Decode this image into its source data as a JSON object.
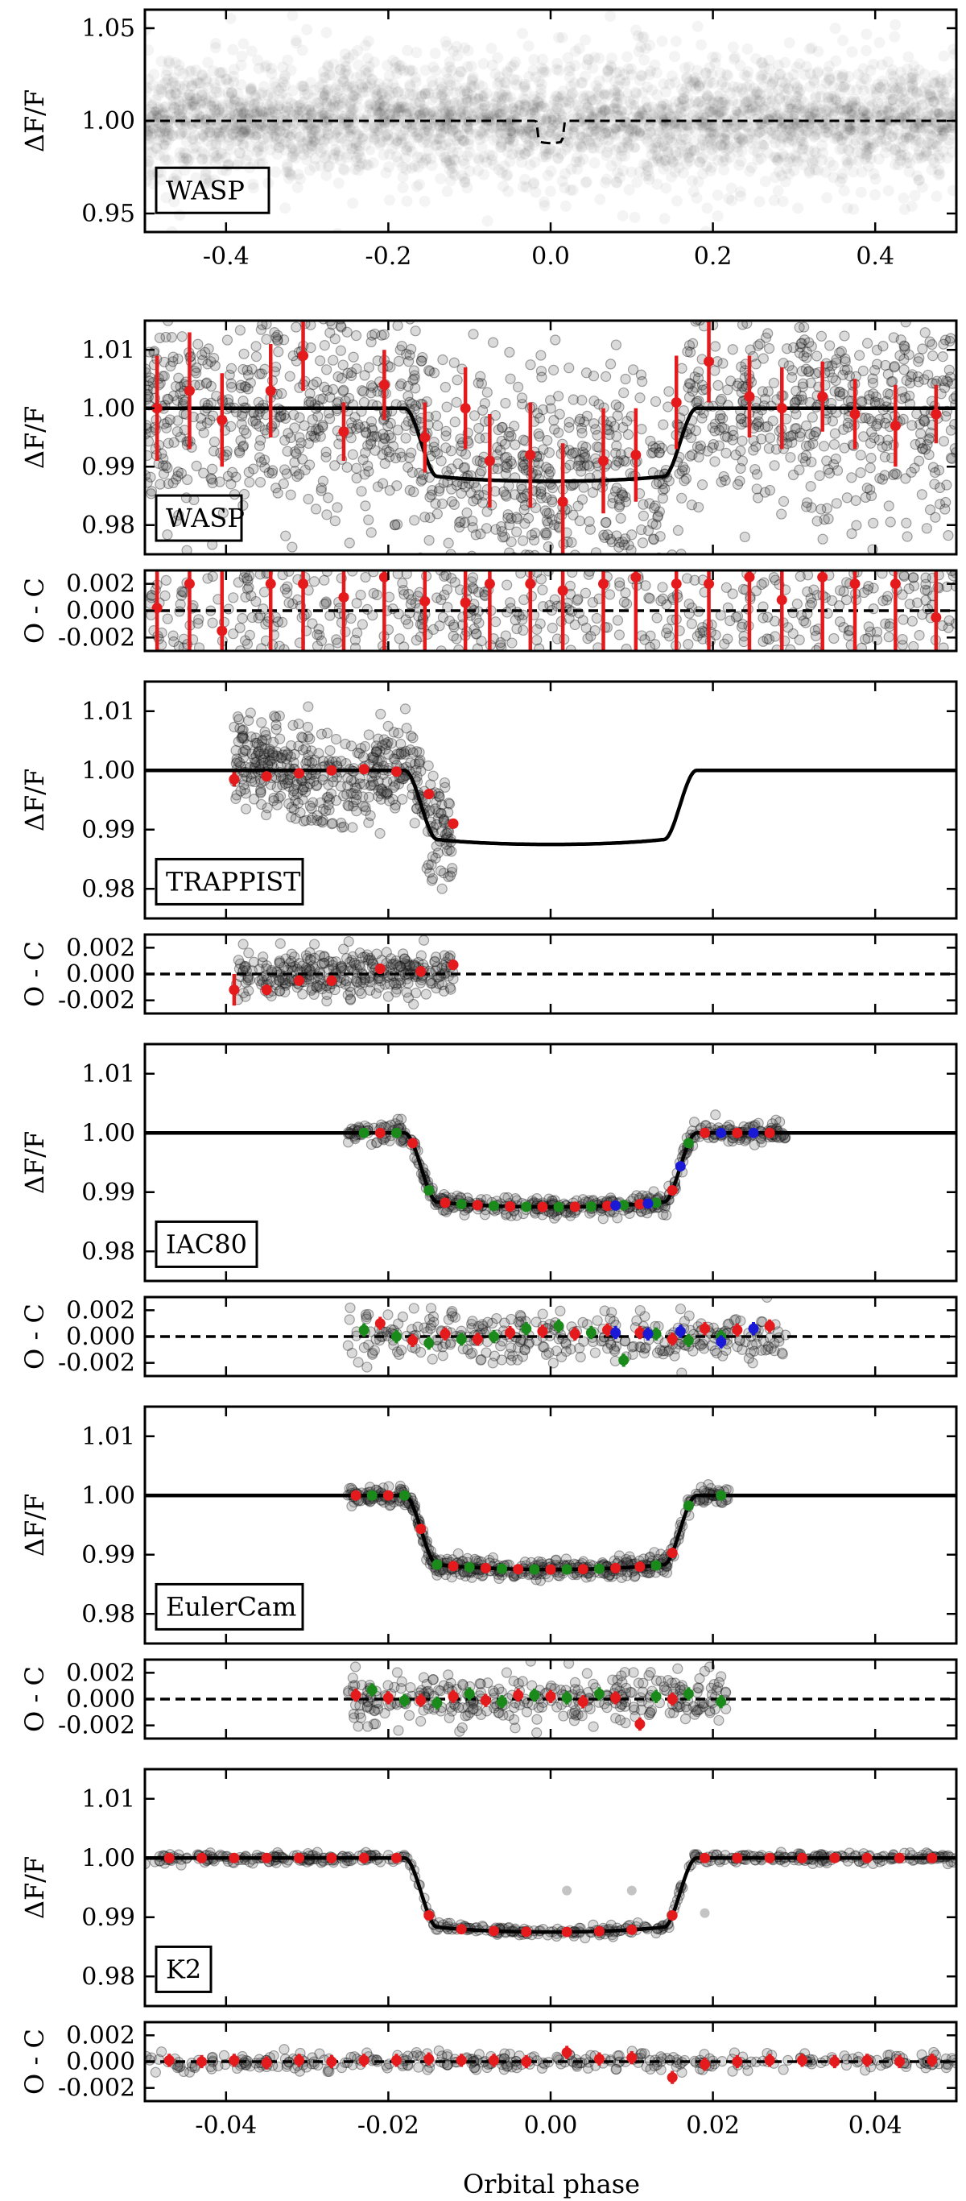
{
  "figure": {
    "xlabel": "Orbital phase"
  },
  "chart_data": [
    {
      "type": "scatter",
      "instrument": "WASP",
      "ylabel": "ΔF/F",
      "xlim": [
        -0.5,
        0.5
      ],
      "ylim": [
        0.94,
        1.06
      ],
      "xticks": [
        -0.4,
        -0.2,
        0.0,
        0.2,
        0.4
      ],
      "xtick_labels": [
        "-0.4",
        "-0.2",
        "0.0",
        "0.2",
        "0.4"
      ],
      "yticks": [
        0.95,
        1.0,
        1.05
      ],
      "ytick_labels": [
        "0.95",
        "1.00",
        "1.05"
      ],
      "reference_line": 1.0,
      "model_dashed": {
        "depth": 0.012,
        "t14": 0.036
      },
      "point_density": "dense grey band centred on 1.00"
    },
    {
      "type": "scatter",
      "instrument": "WASP",
      "ylabel": "ΔF/F",
      "xlim": [
        -0.05,
        0.05
      ],
      "ylim": [
        0.975,
        1.015
      ],
      "yticks": [
        0.98,
        0.99,
        1.0,
        1.01
      ],
      "ytick_labels": [
        "0.98",
        "0.99",
        "1.00",
        "1.01"
      ],
      "model": {
        "depth": 0.0125,
        "t14": 0.036,
        "ingress": 0.004
      },
      "binned": [
        {
          "x": -0.0485,
          "y": 1.0,
          "err": 0.009
        },
        {
          "x": -0.0445,
          "y": 1.003,
          "err": 0.01
        },
        {
          "x": -0.0405,
          "y": 0.998,
          "err": 0.008
        },
        {
          "x": -0.0345,
          "y": 1.003,
          "err": 0.008
        },
        {
          "x": -0.0305,
          "y": 1.009,
          "err": 0.006
        },
        {
          "x": -0.0255,
          "y": 0.996,
          "err": 0.005
        },
        {
          "x": -0.0205,
          "y": 1.004,
          "err": 0.006
        },
        {
          "x": -0.0155,
          "y": 0.995,
          "err": 0.006
        },
        {
          "x": -0.0105,
          "y": 1.0,
          "err": 0.007
        },
        {
          "x": -0.0075,
          "y": 0.991,
          "err": 0.008
        },
        {
          "x": -0.0025,
          "y": 0.992,
          "err": 0.009
        },
        {
          "x": 0.0015,
          "y": 0.984,
          "err": 0.01
        },
        {
          "x": 0.0065,
          "y": 0.991,
          "err": 0.009
        },
        {
          "x": 0.0105,
          "y": 0.992,
          "err": 0.008
        },
        {
          "x": 0.0155,
          "y": 1.001,
          "err": 0.008
        },
        {
          "x": 0.0195,
          "y": 1.008,
          "err": 0.007
        },
        {
          "x": 0.0245,
          "y": 1.002,
          "err": 0.007
        },
        {
          "x": 0.0285,
          "y": 1.0,
          "err": 0.007
        },
        {
          "x": 0.0335,
          "y": 1.002,
          "err": 0.006
        },
        {
          "x": 0.0375,
          "y": 0.999,
          "err": 0.006
        },
        {
          "x": 0.0425,
          "y": 0.997,
          "err": 0.007
        },
        {
          "x": 0.0475,
          "y": 0.999,
          "err": 0.005
        }
      ]
    },
    {
      "type": "scatter",
      "instrument": "WASP residuals",
      "ylabel": "O - C",
      "xlim": [
        -0.05,
        0.05
      ],
      "ylim": [
        -0.003,
        0.003
      ],
      "yticks": [
        -0.002,
        0.0,
        0.002
      ],
      "ytick_labels": [
        "-0.002",
        "0.000",
        "0.002"
      ],
      "reference_line": 0.0,
      "residuals": [
        {
          "x": -0.0485,
          "y": 0.0002,
          "err": 0.006
        },
        {
          "x": -0.0445,
          "y": 0.002,
          "err": 0.006
        },
        {
          "x": -0.0405,
          "y": -0.0015,
          "err": 0.006
        },
        {
          "x": -0.0345,
          "y": 0.002,
          "err": 0.006
        },
        {
          "x": -0.0305,
          "y": 0.002,
          "err": 0.006
        },
        {
          "x": -0.0255,
          "y": 0.001,
          "err": 0.006
        },
        {
          "x": -0.0205,
          "y": 0.0025,
          "err": 0.006
        },
        {
          "x": -0.0155,
          "y": 0.0007,
          "err": 0.006
        },
        {
          "x": -0.0105,
          "y": 0.0006,
          "err": 0.006
        },
        {
          "x": -0.0075,
          "y": 0.002,
          "err": 0.006
        },
        {
          "x": -0.0025,
          "y": 0.002,
          "err": 0.006
        },
        {
          "x": 0.0015,
          "y": 0.0015,
          "err": 0.006
        },
        {
          "x": 0.0065,
          "y": 0.002,
          "err": 0.006
        },
        {
          "x": 0.0105,
          "y": 0.0025,
          "err": 0.006
        },
        {
          "x": 0.0155,
          "y": 0.002,
          "err": 0.006
        },
        {
          "x": 0.0195,
          "y": 0.002,
          "err": 0.006
        },
        {
          "x": 0.0245,
          "y": 0.0025,
          "err": 0.006
        },
        {
          "x": 0.0285,
          "y": 0.0008,
          "err": 0.006
        },
        {
          "x": 0.0335,
          "y": 0.0025,
          "err": 0.006
        },
        {
          "x": 0.0375,
          "y": 0.002,
          "err": 0.006
        },
        {
          "x": 0.0425,
          "y": 0.002,
          "err": 0.006
        },
        {
          "x": 0.0475,
          "y": -0.0005,
          "err": 0.006
        }
      ]
    },
    {
      "type": "scatter",
      "instrument": "TRAPPIST",
      "ylabel": "ΔF/F",
      "xlim": [
        -0.05,
        0.05
      ],
      "ylim": [
        0.975,
        1.015
      ],
      "yticks": [
        0.98,
        0.99,
        1.0,
        1.01
      ],
      "ytick_labels": [
        "0.98",
        "0.99",
        "1.00",
        "1.01"
      ],
      "model": {
        "depth": 0.0125,
        "t14": 0.036,
        "ingress": 0.004
      },
      "data_range": [
        -0.039,
        -0.012
      ],
      "binned": [
        {
          "x": -0.039,
          "y": 0.9985,
          "err": 0.0012
        },
        {
          "x": -0.035,
          "y": 0.999,
          "err": 0.0008
        },
        {
          "x": -0.031,
          "y": 0.9995,
          "err": 0.0008
        },
        {
          "x": -0.027,
          "y": 1.0,
          "err": 0.0008
        },
        {
          "x": -0.023,
          "y": 1.0002,
          "err": 0.0008
        },
        {
          "x": -0.019,
          "y": 0.9998,
          "err": 0.0008
        },
        {
          "x": -0.015,
          "y": 0.996,
          "err": 0.0008
        },
        {
          "x": -0.012,
          "y": 0.991,
          "err": 0.0008
        }
      ]
    },
    {
      "type": "scatter",
      "instrument": "TRAPPIST residuals",
      "ylabel": "O - C",
      "xlim": [
        -0.05,
        0.05
      ],
      "ylim": [
        -0.003,
        0.003
      ],
      "yticks": [
        -0.002,
        0.0,
        0.002
      ],
      "ytick_labels": [
        "-0.002",
        "0.000",
        "0.002"
      ],
      "reference_line": 0.0,
      "residuals": [
        {
          "x": -0.039,
          "y": -0.0012,
          "err": 0.0012
        },
        {
          "x": -0.035,
          "y": -0.0012,
          "err": 0.0004
        },
        {
          "x": -0.031,
          "y": -0.0005,
          "err": 0.0004
        },
        {
          "x": -0.027,
          "y": -0.0005,
          "err": 0.0004
        },
        {
          "x": -0.021,
          "y": 0.0004,
          "err": 0.0004
        },
        {
          "x": -0.016,
          "y": 0.0002,
          "err": 0.0004
        },
        {
          "x": -0.012,
          "y": 0.0007,
          "err": 0.0004
        }
      ]
    },
    {
      "type": "scatter",
      "instrument": "IAC80",
      "ylabel": "ΔF/F",
      "xlim": [
        -0.05,
        0.05
      ],
      "ylim": [
        0.975,
        1.015
      ],
      "yticks": [
        0.98,
        0.99,
        1.0,
        1.01
      ],
      "ytick_labels": [
        "0.98",
        "0.99",
        "1.00",
        "1.01"
      ],
      "model": {
        "depth": 0.0125,
        "t14": 0.036,
        "ingress": 0.004
      },
      "data_range": [
        -0.025,
        0.029
      ],
      "series": [
        {
          "name": "",
          "color": "#e41a1c",
          "x": [
            -0.021,
            -0.017,
            -0.013,
            -0.009,
            -0.005,
            -0.001,
            0.003,
            0.007,
            0.011,
            0.015,
            0.019,
            0.023,
            0.027
          ]
        },
        {
          "name": "",
          "color": "#1a8a1a",
          "x": [
            -0.023,
            -0.019,
            -0.015,
            -0.011,
            -0.007,
            -0.003,
            0.001,
            0.005,
            0.009,
            0.013,
            0.017,
            0.021
          ]
        },
        {
          "name": "",
          "color": "#1a1ad6",
          "x": [
            0.008,
            0.012,
            0.016,
            0.021,
            0.025
          ]
        }
      ]
    },
    {
      "type": "scatter",
      "instrument": "IAC80 residuals",
      "ylabel": "O - C",
      "xlim": [
        -0.05,
        0.05
      ],
      "ylim": [
        -0.003,
        0.003
      ],
      "yticks": [
        -0.002,
        0.0,
        0.002
      ],
      "ytick_labels": [
        "-0.002",
        "0.000",
        "0.002"
      ],
      "reference_line": 0.0,
      "series": [
        {
          "color": "#e41a1c",
          "points": [
            [
              -0.021,
              0.001
            ],
            [
              -0.017,
              -0.0003
            ],
            [
              -0.013,
              0.0002
            ],
            [
              -0.009,
              -0.0002
            ],
            [
              -0.005,
              0.0003
            ],
            [
              -0.001,
              0.0004
            ],
            [
              0.003,
              0.0002
            ],
            [
              0.007,
              0.0005
            ],
            [
              0.011,
              0.0003
            ],
            [
              0.015,
              -0.0002
            ],
            [
              0.019,
              0.0006
            ],
            [
              0.023,
              0.0005
            ],
            [
              0.027,
              0.0008
            ]
          ]
        },
        {
          "color": "#1a8a1a",
          "points": [
            [
              -0.023,
              0.0005
            ],
            [
              -0.019,
              0.0
            ],
            [
              -0.015,
              -0.0005
            ],
            [
              -0.011,
              -0.0002
            ],
            [
              -0.007,
              0.0
            ],
            [
              -0.003,
              0.0006
            ],
            [
              0.001,
              0.0008
            ],
            [
              0.005,
              0.0003
            ],
            [
              0.009,
              -0.0018
            ],
            [
              0.013,
              0.0002
            ],
            [
              0.017,
              -0.0003
            ],
            [
              0.021,
              0.0
            ]
          ]
        },
        {
          "color": "#1a1ad6",
          "points": [
            [
              0.008,
              0.0003
            ],
            [
              0.012,
              0.0002
            ],
            [
              0.016,
              0.0004
            ],
            [
              0.021,
              -0.0004
            ],
            [
              0.025,
              0.0006
            ]
          ]
        }
      ]
    },
    {
      "type": "scatter",
      "instrument": "EulerCam",
      "ylabel": "ΔF/F",
      "xlim": [
        -0.05,
        0.05
      ],
      "ylim": [
        0.975,
        1.015
      ],
      "yticks": [
        0.98,
        0.99,
        1.0,
        1.01
      ],
      "ytick_labels": [
        "0.98",
        "0.99",
        "1.00",
        "1.01"
      ],
      "model": {
        "depth": 0.0125,
        "t14": 0.036,
        "ingress": 0.004
      },
      "data_range": [
        -0.025,
        0.022
      ],
      "series": [
        {
          "name": "",
          "color": "#e41a1c",
          "x": [
            -0.024,
            -0.02,
            -0.016,
            -0.012,
            -0.008,
            -0.004,
            0.0,
            0.004,
            0.008,
            0.011,
            0.015
          ]
        },
        {
          "name": "",
          "color": "#1a8a1a",
          "x": [
            -0.022,
            -0.018,
            -0.014,
            -0.01,
            -0.006,
            -0.002,
            0.002,
            0.006,
            0.013,
            0.017,
            0.021
          ]
        }
      ]
    },
    {
      "type": "scatter",
      "instrument": "EulerCam residuals",
      "ylabel": "O - C",
      "xlim": [
        -0.05,
        0.05
      ],
      "ylim": [
        -0.003,
        0.003
      ],
      "yticks": [
        -0.002,
        0.0,
        0.002
      ],
      "ytick_labels": [
        "-0.002",
        "0.000",
        "0.002"
      ],
      "reference_line": 0.0,
      "series": [
        {
          "color": "#e41a1c",
          "points": [
            [
              -0.024,
              0.0003
            ],
            [
              -0.02,
              0.0001
            ],
            [
              -0.016,
              -0.0001
            ],
            [
              -0.012,
              0.0002
            ],
            [
              -0.008,
              -0.0001
            ],
            [
              -0.004,
              0.0003
            ],
            [
              0.0,
              0.0002
            ],
            [
              0.004,
              -0.0002
            ],
            [
              0.008,
              0.0001
            ],
            [
              0.011,
              -0.0019
            ],
            [
              0.015,
              0.0
            ]
          ]
        },
        {
          "color": "#1a8a1a",
          "points": [
            [
              -0.022,
              0.0007
            ],
            [
              -0.018,
              -0.0001
            ],
            [
              -0.014,
              -0.0003
            ],
            [
              -0.01,
              0.0004
            ],
            [
              -0.006,
              -0.0002
            ],
            [
              -0.002,
              0.0003
            ],
            [
              0.002,
              0.0001
            ],
            [
              0.006,
              0.0004
            ],
            [
              0.013,
              0.0002
            ],
            [
              0.017,
              0.0004
            ],
            [
              0.021,
              -0.0002
            ]
          ]
        }
      ]
    },
    {
      "type": "scatter",
      "instrument": "K2",
      "ylabel": "ΔF/F",
      "xlim": [
        -0.05,
        0.05
      ],
      "ylim": [
        0.975,
        1.015
      ],
      "yticks": [
        0.98,
        0.99,
        1.0,
        1.01
      ],
      "ytick_labels": [
        "0.98",
        "0.99",
        "1.00",
        "1.01"
      ],
      "model": {
        "depth": 0.0125,
        "t14": 0.036,
        "ingress": 0.004
      },
      "data_range": [
        -0.05,
        0.05
      ],
      "series": [
        {
          "name": "",
          "color": "#e41a1c",
          "x": [
            -0.047,
            -0.043,
            -0.039,
            -0.035,
            -0.031,
            -0.027,
            -0.023,
            -0.019,
            -0.015,
            -0.011,
            -0.007,
            -0.003,
            0.002,
            0.006,
            0.01,
            0.015,
            0.019,
            0.023,
            0.027,
            0.031,
            0.035,
            0.039,
            0.043,
            0.047
          ]
        }
      ],
      "outliers": [
        [
          0.002,
          0.9945
        ],
        [
          0.01,
          0.9945
        ],
        [
          0.019,
          0.9907
        ]
      ]
    },
    {
      "type": "scatter",
      "instrument": "K2 residuals",
      "ylabel": "O - C",
      "xlim": [
        -0.05,
        0.05
      ],
      "ylim": [
        -0.003,
        0.003
      ],
      "xticks": [
        -0.04,
        -0.02,
        0.0,
        0.02,
        0.04
      ],
      "xtick_labels": [
        "-0.04",
        "-0.02",
        "0.00",
        "0.02",
        "0.04"
      ],
      "yticks": [
        -0.002,
        0.0,
        0.002
      ],
      "ytick_labels": [
        "-0.002",
        "0.000",
        "0.002"
      ],
      "reference_line": 0.0,
      "series": [
        {
          "color": "#e41a1c",
          "points": [
            [
              -0.047,
              0.0001
            ],
            [
              -0.043,
              0.0
            ],
            [
              -0.039,
              0.0001
            ],
            [
              -0.035,
              -0.0001
            ],
            [
              -0.031,
              0.0001
            ],
            [
              -0.027,
              0.0
            ],
            [
              -0.023,
              0.0001
            ],
            [
              -0.019,
              0.0001
            ],
            [
              -0.015,
              0.0002
            ],
            [
              -0.011,
              0.0001
            ],
            [
              -0.007,
              0.0001
            ],
            [
              -0.003,
              0.0
            ],
            [
              0.002,
              0.0007
            ],
            [
              0.006,
              0.0002
            ],
            [
              0.01,
              0.0003
            ],
            [
              0.015,
              -0.0012
            ],
            [
              0.019,
              -0.0002
            ],
            [
              0.023,
              0.0
            ],
            [
              0.027,
              0.0001
            ],
            [
              0.031,
              0.0001
            ],
            [
              0.035,
              0.0
            ],
            [
              0.039,
              0.0001
            ],
            [
              0.043,
              0.0
            ],
            [
              0.047,
              0.0001
            ]
          ]
        }
      ]
    }
  ]
}
